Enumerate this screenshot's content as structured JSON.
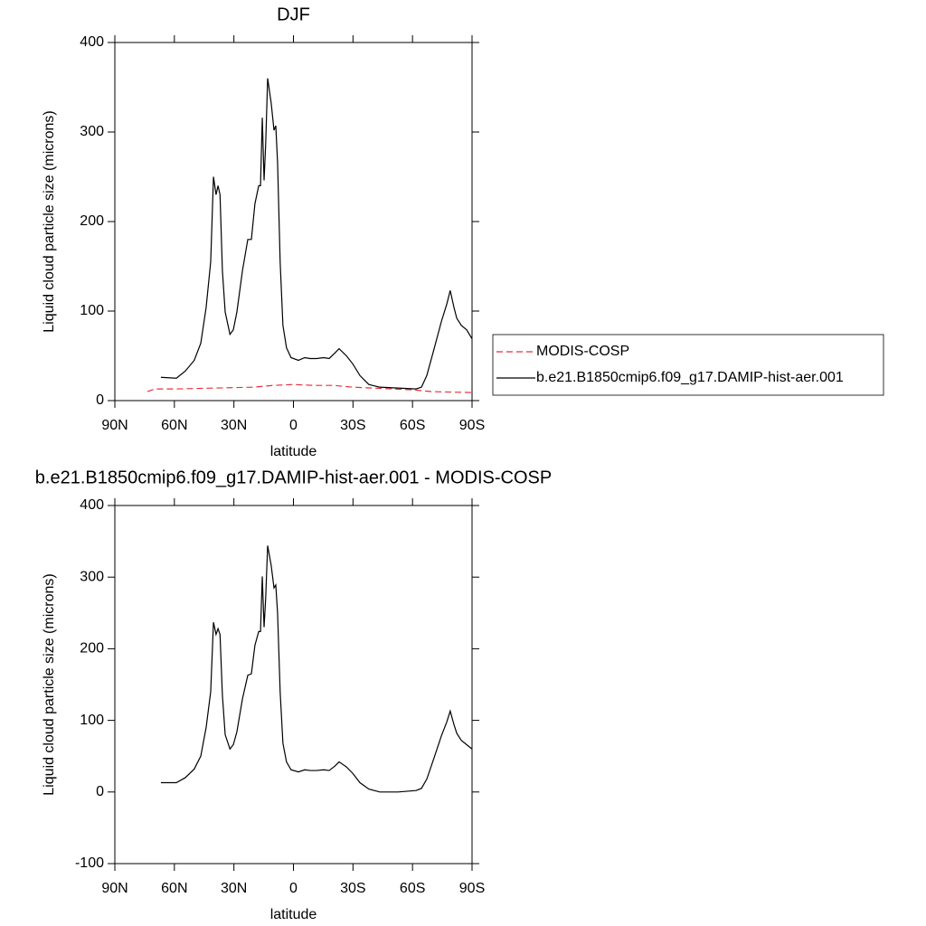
{
  "chart_data": [
    {
      "type": "line",
      "title": "DJF",
      "xlabel": "latitude",
      "ylabel": "Liquid cloud particle size (microns)",
      "xlim": [
        90,
        -90
      ],
      "xticks": [
        {
          "value": 90,
          "label": "90N"
        },
        {
          "value": 60,
          "label": "60N"
        },
        {
          "value": 30,
          "label": "30N"
        },
        0,
        {
          "value": -30,
          "label": "30S"
        },
        {
          "value": -60,
          "label": "60S"
        },
        {
          "value": -90,
          "label": "90S"
        }
      ],
      "ylim": [
        0,
        400
      ],
      "yticks": [
        0,
        100,
        200,
        300,
        400
      ],
      "legend": "right",
      "series": [
        {
          "name": "MODIS-COSP",
          "color": "#e8303a",
          "dashed": true,
          "x": [
            73.6,
            70,
            60,
            40,
            20,
            10,
            0,
            -10,
            -20,
            -30,
            -50,
            -60,
            -70,
            -90
          ],
          "values": [
            10,
            13,
            13,
            14,
            15,
            17,
            18,
            17,
            17,
            15,
            13,
            12,
            10,
            9
          ]
        },
        {
          "name": "b.e21.B1850cmip6.f09_g17.DAMIP-hist-aer.001",
          "color": "#000000",
          "dashed": false,
          "x": [
            66.8,
            59,
            54.5,
            50,
            46.7,
            44,
            41.7,
            40.3,
            39,
            38,
            37,
            35.8,
            34.4,
            32,
            30.3,
            28.5,
            25.7,
            23,
            21.2,
            19.4,
            17.5,
            16.6,
            15.7,
            14.8,
            14,
            13,
            11.2,
            9.8,
            8.9,
            8,
            6.7,
            5.3,
            3.5,
            1.2,
            -2.5,
            -5.7,
            -8.4,
            -11.6,
            -15.3,
            -18,
            -20.8,
            -23,
            -26.7,
            -29.9,
            -33.5,
            -38,
            -43.5,
            -52.7,
            -61.8,
            -64.5,
            -67.2,
            -70.9,
            -74.5,
            -77.3,
            -79,
            -80.9,
            -82.3,
            -84.6,
            -87.3,
            -90
          ],
          "values": [
            26,
            25,
            33,
            45,
            64,
            104,
            155,
            250,
            230,
            240,
            230,
            145,
            99,
            74,
            79,
            99,
            145,
            180,
            180,
            220,
            240,
            240,
            316,
            246,
            286,
            360,
            332,
            302,
            307,
            266,
            155,
            84,
            59,
            48,
            45,
            48,
            47,
            47,
            48,
            47,
            53,
            58,
            50,
            41,
            28,
            18,
            15,
            14,
            13,
            15,
            28,
            58,
            88,
            108,
            123,
            104,
            92,
            84,
            79,
            69
          ]
        }
      ]
    },
    {
      "type": "line",
      "title": "b.e21.B1850cmip6.f09_g17.DAMIP-hist-aer.001 - MODIS-COSP",
      "xlabel": "latitude",
      "ylabel": "Liquid cloud particle size (microns)",
      "xlim": [
        90,
        -90
      ],
      "xticks": [
        {
          "value": 90,
          "label": "90N"
        },
        {
          "value": 60,
          "label": "60N"
        },
        {
          "value": 30,
          "label": "30N"
        },
        0,
        {
          "value": -30,
          "label": "30S"
        },
        {
          "value": -60,
          "label": "60S"
        },
        {
          "value": -90,
          "label": "90S"
        }
      ],
      "ylim": [
        -100,
        400
      ],
      "yticks": [
        -100,
        0,
        100,
        200,
        300,
        400
      ],
      "series": [
        {
          "color": "#000000",
          "dashed": false,
          "x": [
            66.8,
            59,
            54.5,
            50,
            46.7,
            44,
            41.7,
            40.3,
            39,
            38,
            37,
            35.8,
            34.4,
            32,
            30.3,
            28.5,
            25.7,
            23,
            21.2,
            19.4,
            17.5,
            16.6,
            15.7,
            14.8,
            14,
            13,
            11.2,
            9.8,
            8.9,
            8,
            6.7,
            5.3,
            3.5,
            1.2,
            -2.5,
            -5.7,
            -8.4,
            -11.6,
            -15.3,
            -18,
            -20.8,
            -23,
            -26.7,
            -29.9,
            -33.5,
            -38,
            -43.5,
            -52.7,
            -61.8,
            -64.5,
            -67.2,
            -70.9,
            -74.5,
            -77.3,
            -79,
            -80.9,
            -82.3,
            -84.6,
            -87.3,
            -90
          ],
          "values": [
            13,
            13,
            20,
            32,
            50,
            90,
            140,
            237,
            220,
            228,
            220,
            135,
            80,
            60,
            66,
            84,
            130,
            163,
            165,
            205,
            224,
            224,
            301,
            230,
            270,
            344,
            316,
            285,
            289,
            250,
            140,
            68,
            42,
            31,
            28,
            31,
            30,
            30,
            31,
            30,
            36,
            42,
            35,
            26,
            13,
            4,
            0,
            0,
            2,
            5,
            18,
            48,
            78,
            98,
            113,
            94,
            82,
            72,
            66,
            60
          ]
        }
      ]
    }
  ]
}
